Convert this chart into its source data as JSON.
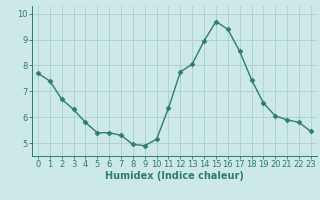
{
  "x": [
    0,
    1,
    2,
    3,
    4,
    5,
    6,
    7,
    8,
    9,
    10,
    11,
    12,
    13,
    14,
    15,
    16,
    17,
    18,
    19,
    20,
    21,
    22,
    23
  ],
  "y": [
    7.7,
    7.4,
    6.7,
    6.3,
    5.8,
    5.4,
    5.4,
    5.3,
    4.95,
    4.9,
    5.15,
    6.35,
    7.75,
    8.05,
    8.95,
    9.7,
    9.4,
    8.55,
    7.45,
    6.55,
    6.05,
    5.9,
    5.8,
    5.45
  ],
  "line_color": "#2e7d6e",
  "marker": "D",
  "marker_size": 2.5,
  "bg_color": "#cce8e8",
  "grid_color": "#aacfcf",
  "axis_color": "#2e7d6e",
  "xlabel": "Humidex (Indice chaleur)",
  "xlabel_fontsize": 7,
  "tick_fontsize": 6,
  "ylim": [
    4.5,
    10.3
  ],
  "xlim": [
    -0.5,
    23.5
  ],
  "yticks": [
    5,
    6,
    7,
    8,
    9,
    10
  ],
  "xticks": [
    0,
    1,
    2,
    3,
    4,
    5,
    6,
    7,
    8,
    9,
    10,
    11,
    12,
    13,
    14,
    15,
    16,
    17,
    18,
    19,
    20,
    21,
    22,
    23
  ]
}
